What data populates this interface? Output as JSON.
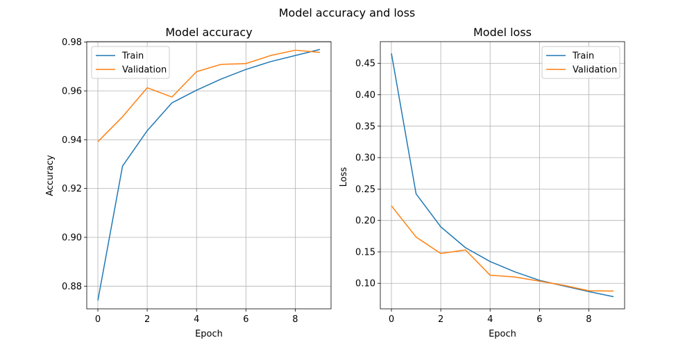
{
  "figure": {
    "title": "Model accuracy and loss"
  },
  "chart_data": [
    {
      "type": "line",
      "title": "Model accuracy",
      "xlabel": "Epoch",
      "ylabel": "Accuracy",
      "x": [
        0,
        1,
        2,
        3,
        4,
        5,
        6,
        7,
        8,
        9
      ],
      "xlim": [
        -0.45,
        9.45
      ],
      "ylim": [
        0.8707,
        0.9802
      ],
      "xticks": [
        0,
        2,
        4,
        6,
        8
      ],
      "yticks": [
        0.88,
        0.9,
        0.92,
        0.94,
        0.96,
        0.98
      ],
      "ytick_labels": [
        "0.88",
        "0.90",
        "0.92",
        "0.94",
        "0.96",
        "0.98"
      ],
      "grid": true,
      "legend_position": "upper left",
      "series": [
        {
          "name": "Train",
          "color": "#1f77b4",
          "values": [
            0.8741,
            0.9292,
            0.9437,
            0.9551,
            0.9603,
            0.9649,
            0.9688,
            0.972,
            0.9745,
            0.977
          ]
        },
        {
          "name": "Validation",
          "color": "#ff7f0e",
          "values": [
            0.9392,
            0.9494,
            0.9613,
            0.9575,
            0.9679,
            0.9709,
            0.9712,
            0.9745,
            0.9767,
            0.9758
          ]
        }
      ]
    },
    {
      "type": "line",
      "title": "Model loss",
      "xlabel": "Epoch",
      "ylabel": "Loss",
      "x": [
        0,
        1,
        2,
        3,
        4,
        5,
        6,
        7,
        8,
        9
      ],
      "xlim": [
        -0.45,
        9.45
      ],
      "ylim": [
        0.0594,
        0.4845
      ],
      "xticks": [
        0,
        2,
        4,
        6,
        8
      ],
      "yticks": [
        0.1,
        0.15,
        0.2,
        0.25,
        0.3,
        0.35,
        0.4,
        0.45
      ],
      "ytick_labels": [
        "0.10",
        "0.15",
        "0.20",
        "0.25",
        "0.30",
        "0.35",
        "0.40",
        "0.45"
      ],
      "grid": true,
      "legend_position": "upper right",
      "series": [
        {
          "name": "Train",
          "color": "#1f77b4",
          "values": [
            0.4658,
            0.2423,
            0.1899,
            0.1567,
            0.1347,
            0.1183,
            0.1047,
            0.0957,
            0.0869,
            0.0787
          ]
        },
        {
          "name": "Validation",
          "color": "#ff7f0e",
          "values": [
            0.2233,
            0.1736,
            0.1474,
            0.1531,
            0.113,
            0.1101,
            0.1034,
            0.0967,
            0.0881,
            0.0877
          ]
        }
      ]
    }
  ]
}
